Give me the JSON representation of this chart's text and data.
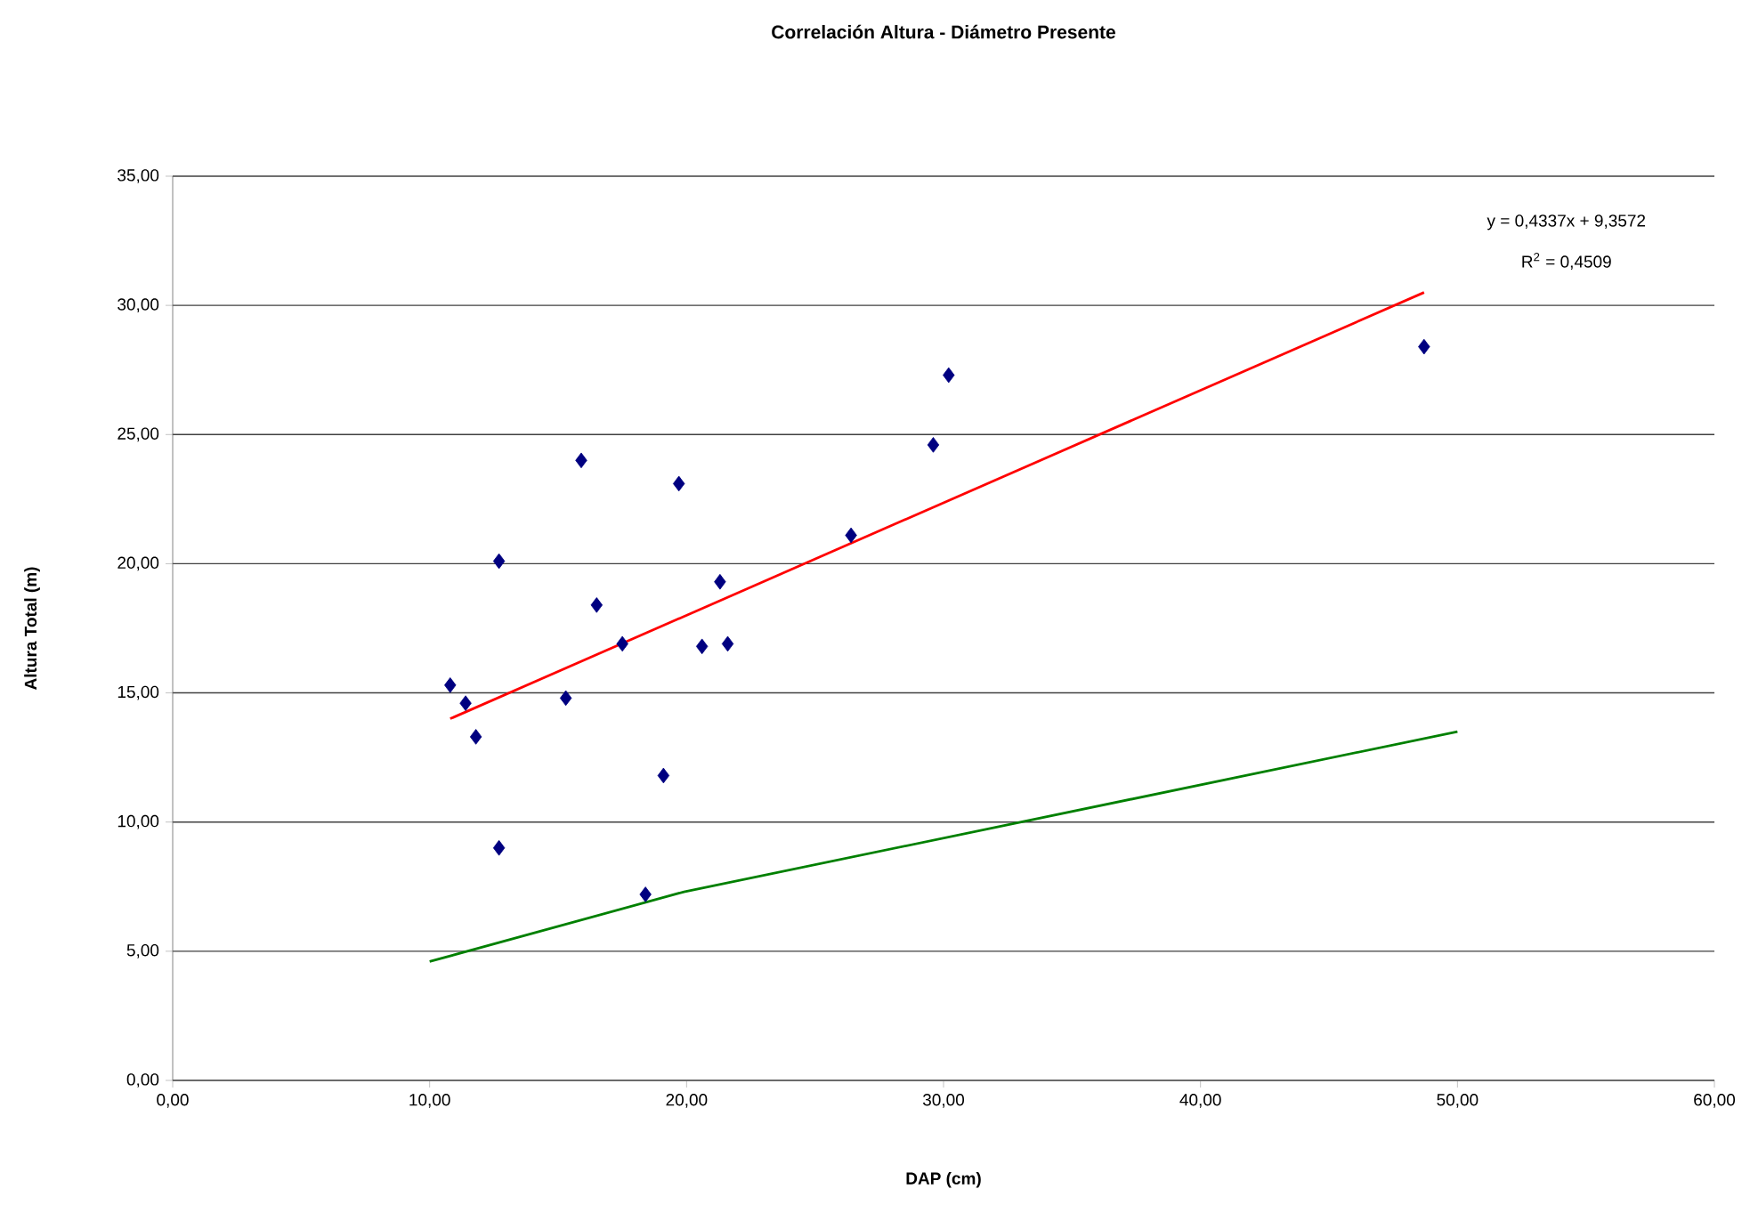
{
  "chart_data": {
    "type": "scatter",
    "title": "Correlación Altura - Diámetro Presente",
    "xlabel": "DAP (cm)",
    "ylabel": "Altura Total (m)",
    "xlim": [
      0,
      60
    ],
    "ylim": [
      0,
      35
    ],
    "xticks": [
      {
        "value": 0,
        "label": "0,00"
      },
      {
        "value": 10,
        "label": "10,00"
      },
      {
        "value": 20,
        "label": "20,00"
      },
      {
        "value": 30,
        "label": "30,00"
      },
      {
        "value": 40,
        "label": "40,00"
      },
      {
        "value": 50,
        "label": "50,00"
      },
      {
        "value": 60,
        "label": "60,00"
      }
    ],
    "yticks": [
      {
        "value": 0,
        "label": "0,00"
      },
      {
        "value": 5,
        "label": "5,00"
      },
      {
        "value": 10,
        "label": "10,00"
      },
      {
        "value": 15,
        "label": "15,00"
      },
      {
        "value": 20,
        "label": "20,00"
      },
      {
        "value": 25,
        "label": "25,00"
      },
      {
        "value": 30,
        "label": "30,00"
      },
      {
        "value": 35,
        "label": "35,00"
      }
    ],
    "grid": "y",
    "marker": "diamond",
    "annotations": [
      "y = 0,4337x + 9,3572",
      "R$^{2}$ = 0,4509"
    ],
    "series": [
      {
        "color": "#000080",
        "x": [
          10.8,
          11.4,
          11.8,
          12.7,
          12.7,
          15.3,
          15.9,
          16.5,
          17.5,
          19.1,
          19.7,
          18.4,
          20.6,
          21.3,
          21.6,
          26.4,
          29.6,
          30.2,
          48.7
        ],
        "values": [
          15.3,
          14.6,
          13.3,
          20.1,
          9.0,
          14.8,
          24.0,
          18.4,
          16.9,
          11.8,
          23.1,
          7.2,
          16.8,
          19.3,
          16.9,
          21.1,
          24.6,
          27.3,
          28.4
        ]
      },
      {
        "type": "line",
        "marker": "none",
        "color": "#ff0000",
        "x": [
          10.8,
          48.7
        ],
        "values": [
          14.0,
          30.5
        ]
      },
      {
        "type": "line",
        "marker": "none",
        "color": "#008000",
        "x": [
          10.0,
          19.9,
          50.0
        ],
        "values": [
          4.6,
          7.3,
          13.5
        ]
      }
    ]
  }
}
